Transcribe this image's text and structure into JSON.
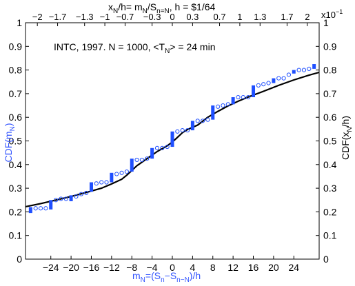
{
  "chart_data": {
    "type": "scatter",
    "annotation": {
      "text": "INTC, 1997. N = 1000, <T",
      "sub": "N",
      "rest": "> = 24 min"
    },
    "bottom_axis": {
      "label": {
        "main": "m",
        "sub1": "N",
        "mid": "=(S",
        "sub2": "n",
        "dash": "−S",
        "sub3": "n−N",
        "end": ")/h"
      },
      "xlim": [
        -29,
        29
      ],
      "ticks": [
        -24,
        -20,
        -16,
        -12,
        -8,
        -4,
        0,
        4,
        8,
        12,
        16,
        20,
        24
      ],
      "tick_labels": [
        "−24",
        "−20",
        "−16",
        "−12",
        "−8",
        "−4",
        "0",
        "4",
        "8",
        "12",
        "16",
        "20",
        "24"
      ]
    },
    "top_axis": {
      "label": {
        "a": "x",
        "a_sub": "N",
        "b": "/h= m",
        "b_sub": "N",
        "c": "/S",
        "c_sub": "n=N",
        "d": ", h = $1/64"
      },
      "exponent": "x10",
      "exponent_power": "−1",
      "ticks": [
        -2,
        -1.7,
        -1.3,
        -1,
        -0.7,
        -0.3,
        0,
        0.3,
        0.7,
        1,
        1.3,
        1.7,
        2
      ],
      "tick_labels": [
        "−2",
        "−1.7",
        "−1.3",
        "−1",
        "−0.7",
        "−0.3",
        "0",
        "0.3",
        "0.7",
        "1",
        "1.3",
        "1.7",
        "2"
      ]
    },
    "left_axis": {
      "label": {
        "main": "CDF(m",
        "sub": "N",
        "end": ")"
      },
      "ylim": [
        0,
        1
      ],
      "ticks": [
        0,
        0.1,
        0.2,
        0.3,
        0.4,
        0.5,
        0.6,
        0.7,
        0.8,
        0.9,
        1
      ],
      "tick_labels": [
        "0",
        "0.1",
        "0.2",
        "0.3",
        "0.4",
        "0.5",
        "0.6",
        "0.7",
        "0.8",
        "0.9",
        "1"
      ]
    },
    "right_axis": {
      "label": {
        "main": "CDF(x",
        "sub": "N",
        "end": "/h)"
      },
      "ticks": [
        0,
        0.1,
        0.2,
        0.3,
        0.4,
        0.5,
        0.6,
        0.7,
        0.8,
        0.9,
        1
      ],
      "tick_labels": [
        "0",
        "0.1",
        "0.2",
        "0.3",
        "0.4",
        "0.5",
        "0.6",
        "0.7",
        "0.8",
        "0.9",
        "1"
      ]
    },
    "colors": {
      "empirical": "#1f4fff",
      "fit": "#000000",
      "axis": "#000000",
      "label_blue": "#3355ff"
    },
    "series": [
      {
        "style": "thick-vertical-segments",
        "segments": [
          {
            "x": -28,
            "y0": 0.195,
            "y1": 0.22
          },
          {
            "x": -24,
            "y0": 0.21,
            "y1": 0.25
          },
          {
            "x": -20,
            "y0": 0.245,
            "y1": 0.27
          },
          {
            "x": -16,
            "y0": 0.285,
            "y1": 0.325
          },
          {
            "x": -12,
            "y0": 0.325,
            "y1": 0.365
          },
          {
            "x": -8,
            "y0": 0.37,
            "y1": 0.425
          },
          {
            "x": -4,
            "y0": 0.425,
            "y1": 0.47
          },
          {
            "x": 0,
            "y0": 0.475,
            "y1": 0.54
          },
          {
            "x": 4,
            "y0": 0.545,
            "y1": 0.585
          },
          {
            "x": 8,
            "y0": 0.59,
            "y1": 0.65
          },
          {
            "x": 12,
            "y0": 0.655,
            "y1": 0.685
          },
          {
            "x": 16,
            "y0": 0.685,
            "y1": 0.735
          },
          {
            "x": 20,
            "y0": 0.745,
            "y1": 0.765
          },
          {
            "x": 24,
            "y0": 0.785,
            "y1": 0.8
          },
          {
            "x": 28,
            "y0": 0.805,
            "y1": 0.825
          }
        ]
      },
      {
        "style": "open-circles",
        "points": [
          {
            "x": -27,
            "y": 0.215
          },
          {
            "x": -26,
            "y": 0.215
          },
          {
            "x": -25,
            "y": 0.215
          },
          {
            "x": -23,
            "y": 0.25
          },
          {
            "x": -22,
            "y": 0.255
          },
          {
            "x": -21,
            "y": 0.255
          },
          {
            "x": -19,
            "y": 0.265
          },
          {
            "x": -18,
            "y": 0.275
          },
          {
            "x": -17,
            "y": 0.28
          },
          {
            "x": -15,
            "y": 0.32
          },
          {
            "x": -14,
            "y": 0.325
          },
          {
            "x": -13,
            "y": 0.325
          },
          {
            "x": -11,
            "y": 0.36
          },
          {
            "x": -10,
            "y": 0.365
          },
          {
            "x": -9,
            "y": 0.37
          },
          {
            "x": -7,
            "y": 0.42
          },
          {
            "x": -6,
            "y": 0.42
          },
          {
            "x": -5,
            "y": 0.425
          },
          {
            "x": -3,
            "y": 0.47
          },
          {
            "x": -2,
            "y": 0.47
          },
          {
            "x": -1,
            "y": 0.475
          },
          {
            "x": 1,
            "y": 0.54
          },
          {
            "x": 2,
            "y": 0.545
          },
          {
            "x": 3,
            "y": 0.545
          },
          {
            "x": 5,
            "y": 0.585
          },
          {
            "x": 6,
            "y": 0.585
          },
          {
            "x": 7,
            "y": 0.59
          },
          {
            "x": 9,
            "y": 0.645
          },
          {
            "x": 10,
            "y": 0.65
          },
          {
            "x": 11,
            "y": 0.655
          },
          {
            "x": 13,
            "y": 0.685
          },
          {
            "x": 14,
            "y": 0.685
          },
          {
            "x": 15,
            "y": 0.685
          },
          {
            "x": 17,
            "y": 0.735
          },
          {
            "x": 18,
            "y": 0.74
          },
          {
            "x": 19,
            "y": 0.745
          },
          {
            "x": 21,
            "y": 0.765
          },
          {
            "x": 22,
            "y": 0.765
          },
          {
            "x": 23,
            "y": 0.78
          },
          {
            "x": 25,
            "y": 0.8
          },
          {
            "x": 26,
            "y": 0.8
          },
          {
            "x": 27,
            "y": 0.805
          }
        ]
      },
      {
        "style": "line",
        "points": [
          {
            "x": -29,
            "y": 0.222
          },
          {
            "x": -26,
            "y": 0.235
          },
          {
            "x": -23,
            "y": 0.25
          },
          {
            "x": -20,
            "y": 0.265
          },
          {
            "x": -17,
            "y": 0.282
          },
          {
            "x": -14,
            "y": 0.3
          },
          {
            "x": -12,
            "y": 0.318
          },
          {
            "x": -10,
            "y": 0.338
          },
          {
            "x": -9,
            "y": 0.355
          },
          {
            "x": -8,
            "y": 0.375
          },
          {
            "x": -7,
            "y": 0.395
          },
          {
            "x": -5,
            "y": 0.425
          },
          {
            "x": -3,
            "y": 0.455
          },
          {
            "x": -1,
            "y": 0.48
          },
          {
            "x": 0,
            "y": 0.495
          },
          {
            "x": 1,
            "y": 0.515
          },
          {
            "x": 2,
            "y": 0.535
          },
          {
            "x": 3,
            "y": 0.548
          },
          {
            "x": 5,
            "y": 0.567
          },
          {
            "x": 7,
            "y": 0.6
          },
          {
            "x": 9,
            "y": 0.625
          },
          {
            "x": 11,
            "y": 0.648
          },
          {
            "x": 13,
            "y": 0.668
          },
          {
            "x": 15,
            "y": 0.686
          },
          {
            "x": 18,
            "y": 0.71
          },
          {
            "x": 21,
            "y": 0.735
          },
          {
            "x": 24,
            "y": 0.758
          },
          {
            "x": 27,
            "y": 0.778
          },
          {
            "x": 29,
            "y": 0.79
          }
        ]
      }
    ]
  }
}
